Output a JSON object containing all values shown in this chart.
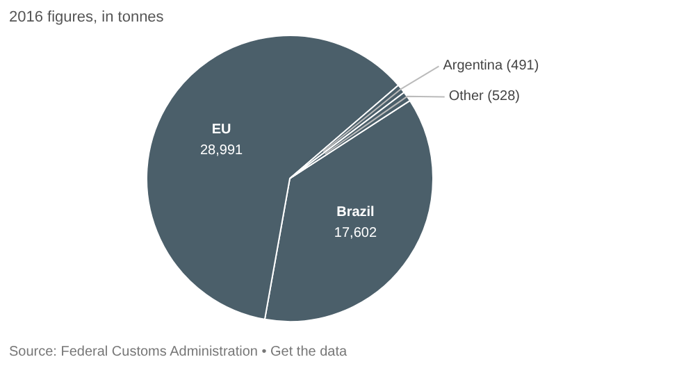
{
  "chart_data": {
    "type": "pie",
    "title": "2016 figures, in tonnes",
    "categories": [
      "Brazil",
      "EU",
      "Argentina",
      "Other"
    ],
    "values": [
      17602,
      28991,
      491,
      528
    ],
    "value_labels": [
      "17,602",
      "28,991",
      "(491)",
      "(528)"
    ],
    "colors": [
      "#4b5f6a",
      "#4b5f6a",
      "#4b5f6a",
      "#4b5f6a"
    ],
    "annotations": [
      "Source: Federal Customs Administration • Get the data"
    ]
  }
}
